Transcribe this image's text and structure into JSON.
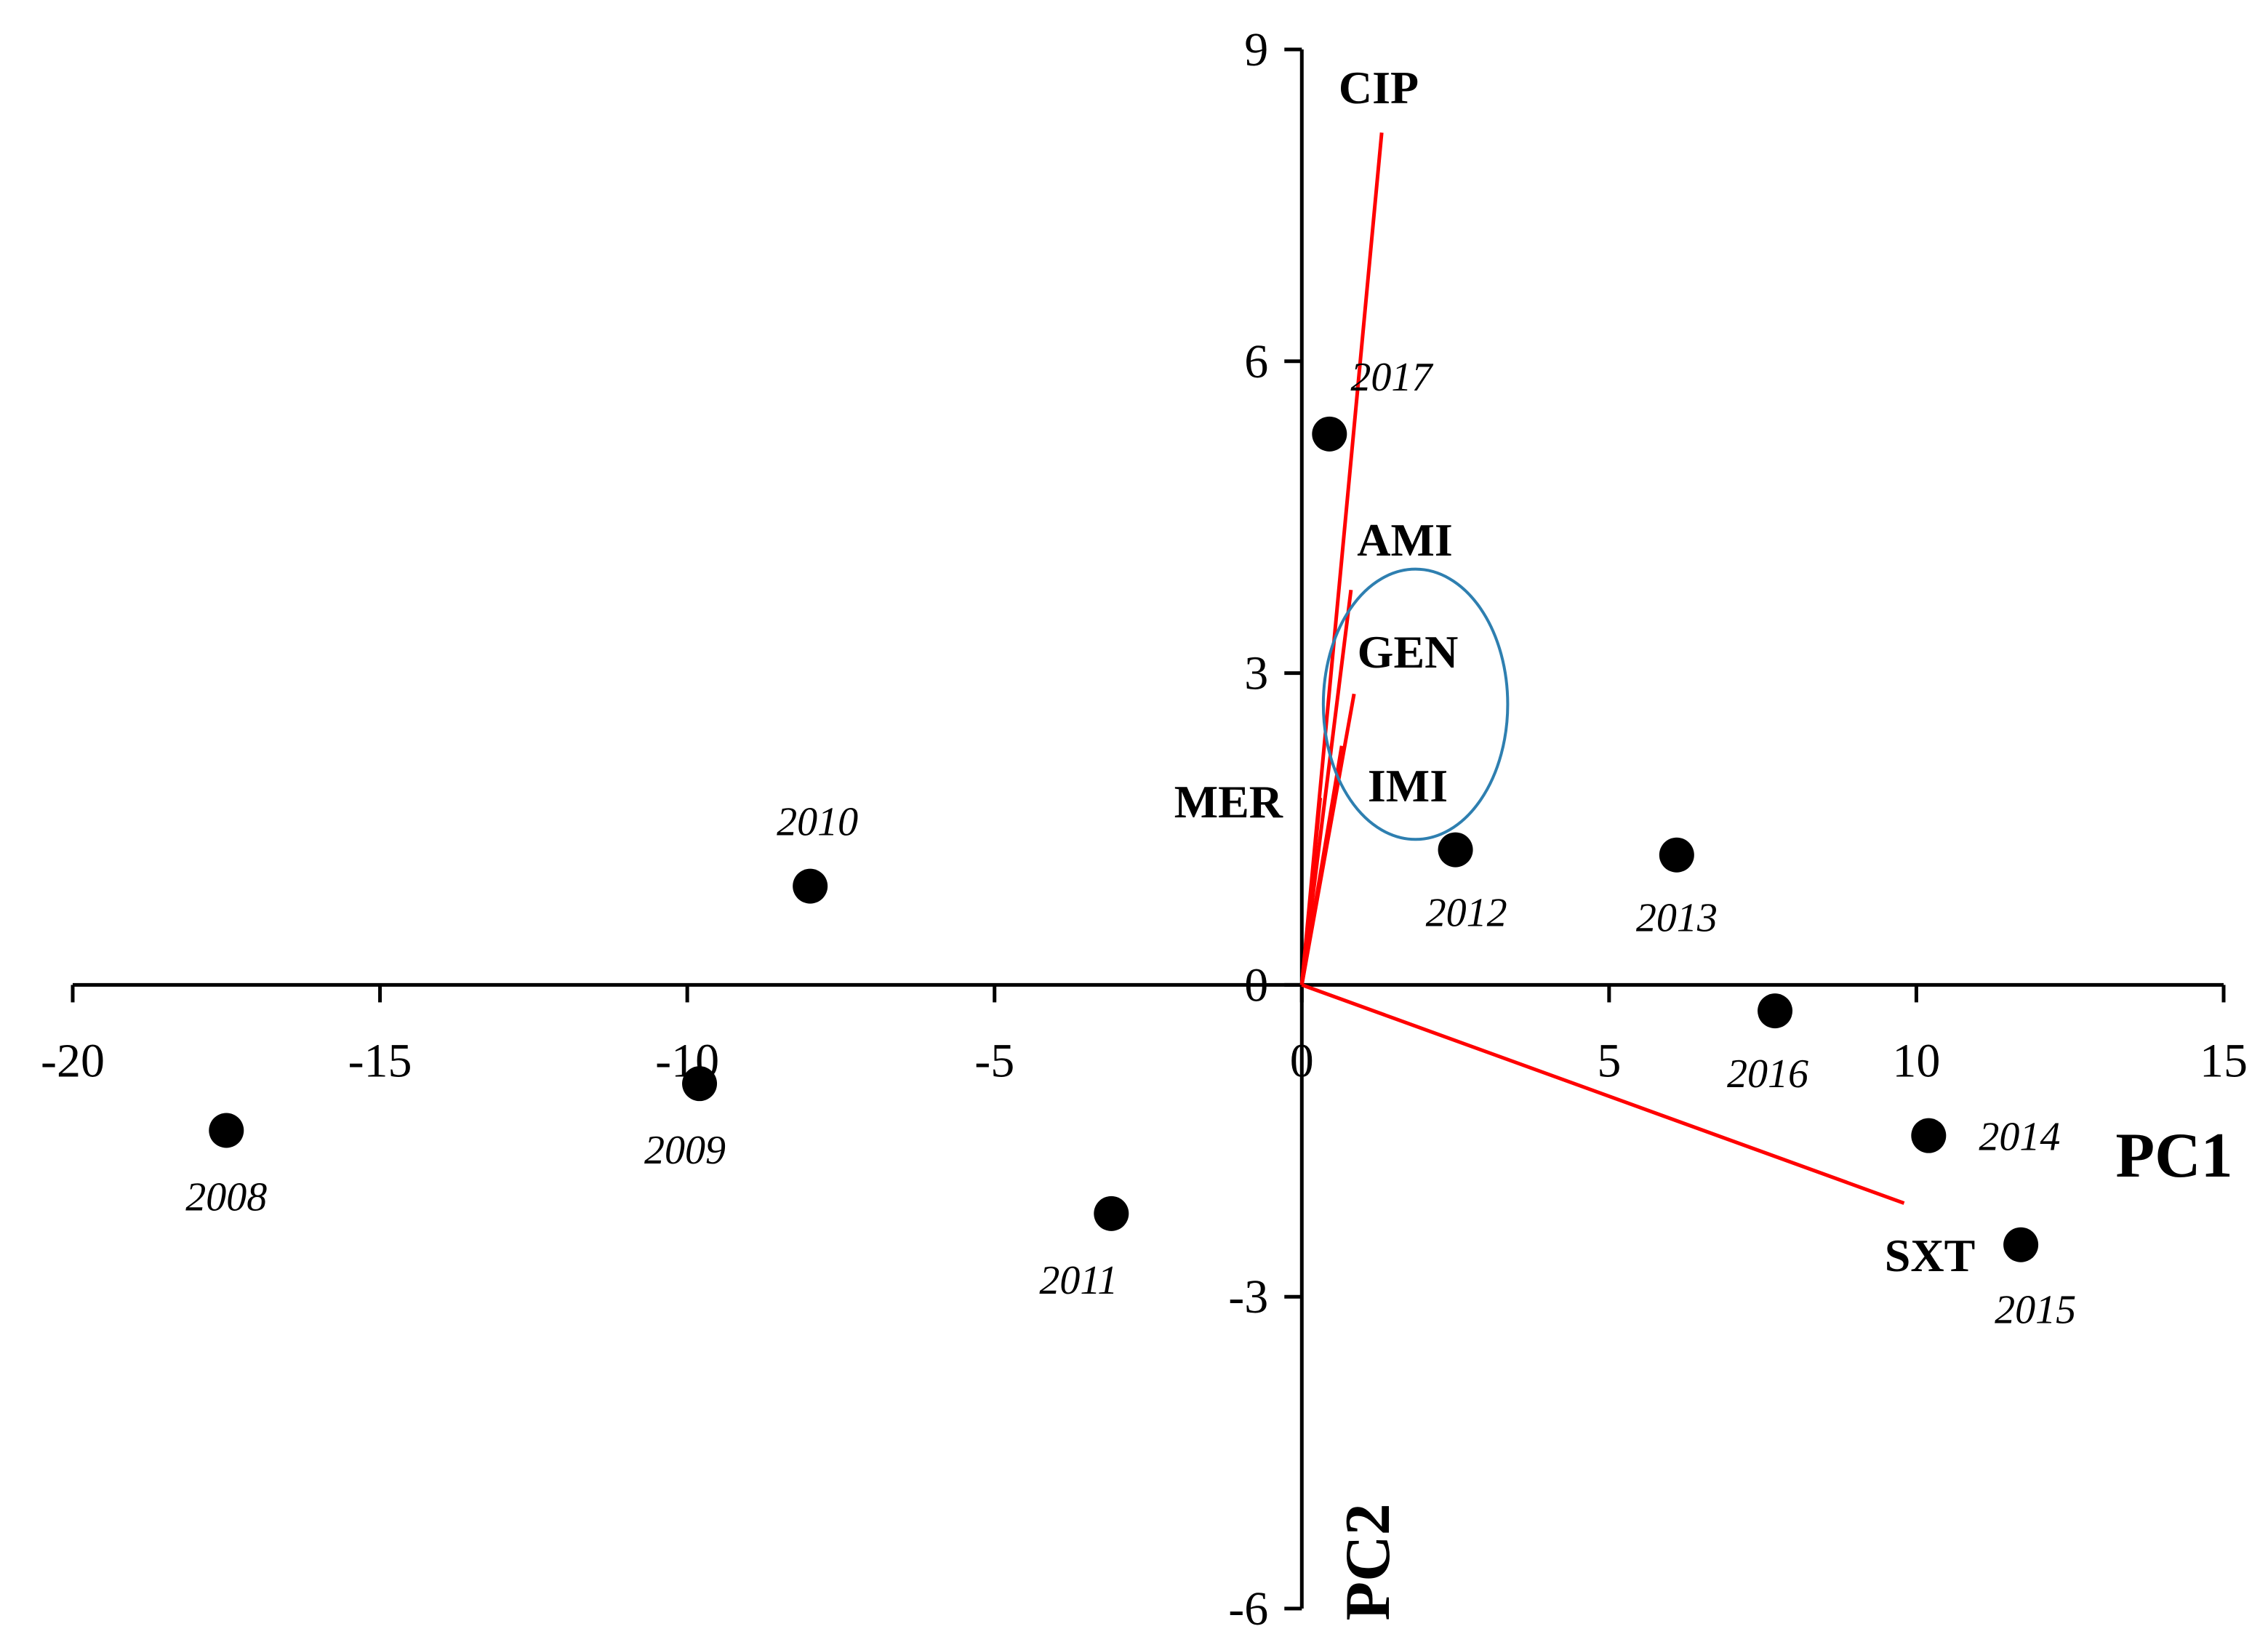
{
  "chart_data": {
    "type": "scatter",
    "subtype": "PCA biplot",
    "title": "",
    "xlabel": "PC1",
    "ylabel": "PC2",
    "xlim": [
      -20,
      15
    ],
    "ylim": [
      -6,
      9
    ],
    "x_ticks": [
      -20,
      -15,
      -10,
      -5,
      0,
      5,
      10,
      15
    ],
    "y_ticks": [
      -6,
      -3,
      0,
      3,
      6,
      9
    ],
    "grid": false,
    "colors": {
      "points": "#000000",
      "loadings": "#ff0000",
      "ellipse": "#2e7fb0"
    },
    "points": [
      {
        "label": "2008",
        "x": -17.5,
        "y": -1.4
      },
      {
        "label": "2009",
        "x": -9.8,
        "y": -0.95
      },
      {
        "label": "2010",
        "x": -8.0,
        "y": 0.95
      },
      {
        "label": "2011",
        "x": -3.1,
        "y": -2.2
      },
      {
        "label": "2012",
        "x": 2.5,
        "y": 1.3
      },
      {
        "label": "2013",
        "x": 6.1,
        "y": 1.25
      },
      {
        "label": "2014",
        "x": 10.2,
        "y": -1.45
      },
      {
        "label": "2015",
        "x": 11.7,
        "y": -2.5
      },
      {
        "label": "2016",
        "x": 7.7,
        "y": -0.25
      },
      {
        "label": "2017",
        "x": 0.45,
        "y": 5.3
      }
    ],
    "loadings": [
      {
        "label": "CIP",
        "x": 1.3,
        "y": 8.2
      },
      {
        "label": "AMI",
        "x": 0.8,
        "y": 3.8
      },
      {
        "label": "GEN",
        "x": 0.85,
        "y": 2.8
      },
      {
        "label": "IMI",
        "x": 0.65,
        "y": 2.3
      },
      {
        "label": "MER",
        "x": 0.3,
        "y": 1.8
      },
      {
        "label": "SXT",
        "x": 9.8,
        "y": -2.1
      }
    ],
    "ellipse": {
      "cx": 1.85,
      "cy": 2.7,
      "rx": 1.5,
      "ry": 1.3
    }
  }
}
